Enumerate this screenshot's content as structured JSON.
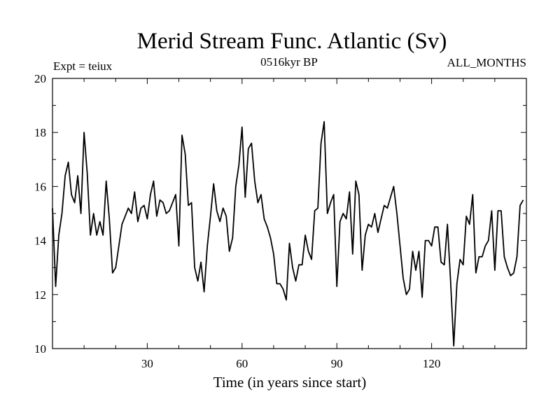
{
  "chart_data": {
    "type": "line",
    "title": "Merid Stream Func. Atlantic (Sv)",
    "left_label": "Expt = teiux",
    "subtitle": "0516kyr BP",
    "right_label": "ALL_MONTHS",
    "xlabel": "Time (in years since start)",
    "ylabel": "",
    "xlim": [
      0,
      150
    ],
    "ylim": [
      10,
      20
    ],
    "x_ticks": [
      30,
      60,
      90,
      120
    ],
    "y_ticks": [
      10,
      12,
      14,
      16,
      18,
      20
    ],
    "x_minor_step": 10,
    "y_minor_step": 1,
    "series": [
      {
        "name": "Merid Stream Func.",
        "color": "#000000",
        "values": [
          15.2,
          12.3,
          14.2,
          15.0,
          16.4,
          16.9,
          15.7,
          15.4,
          16.4,
          15.0,
          18.0,
          16.5,
          14.2,
          15.0,
          14.2,
          14.7,
          14.2,
          16.2,
          14.8,
          12.8,
          13.0,
          13.8,
          14.6,
          14.9,
          15.2,
          15.0,
          15.8,
          14.7,
          15.2,
          15.3,
          14.8,
          15.7,
          16.2,
          14.9,
          15.5,
          15.4,
          15.0,
          15.1,
          15.4,
          15.7,
          13.8,
          17.9,
          17.2,
          15.3,
          15.4,
          13.0,
          12.5,
          13.2,
          12.1,
          13.8,
          14.9,
          16.1,
          15.1,
          14.7,
          15.2,
          14.9,
          13.6,
          14.1,
          16.0,
          16.8,
          18.2,
          15.6,
          17.4,
          17.6,
          16.2,
          15.4,
          15.7,
          14.8,
          14.5,
          14.1,
          13.5,
          12.4,
          12.4,
          12.2,
          11.8,
          13.9,
          13.0,
          12.5,
          13.1,
          13.1,
          14.2,
          13.6,
          13.3,
          15.1,
          15.2,
          17.6,
          18.4,
          15.0,
          15.4,
          15.7,
          12.3,
          14.7,
          15.0,
          14.8,
          15.8,
          13.5,
          16.2,
          15.7,
          12.9,
          14.2,
          14.6,
          14.5,
          15.0,
          14.3,
          14.8,
          15.3,
          15.2,
          15.6,
          16.0,
          15.0,
          13.8,
          12.6,
          12.0,
          12.2,
          13.6,
          12.9,
          13.6,
          11.9,
          14.0,
          14.0,
          13.8,
          14.5,
          14.5,
          13.2,
          13.1,
          14.6,
          12.5,
          10.1,
          12.4,
          13.3,
          13.1,
          14.9,
          14.6,
          15.7,
          12.8,
          13.4,
          13.4,
          13.8,
          14.0,
          15.1,
          12.9,
          15.1,
          15.1,
          13.4,
          13.0,
          12.7,
          12.8,
          13.4,
          15.3,
          15.5
        ]
      }
    ]
  }
}
